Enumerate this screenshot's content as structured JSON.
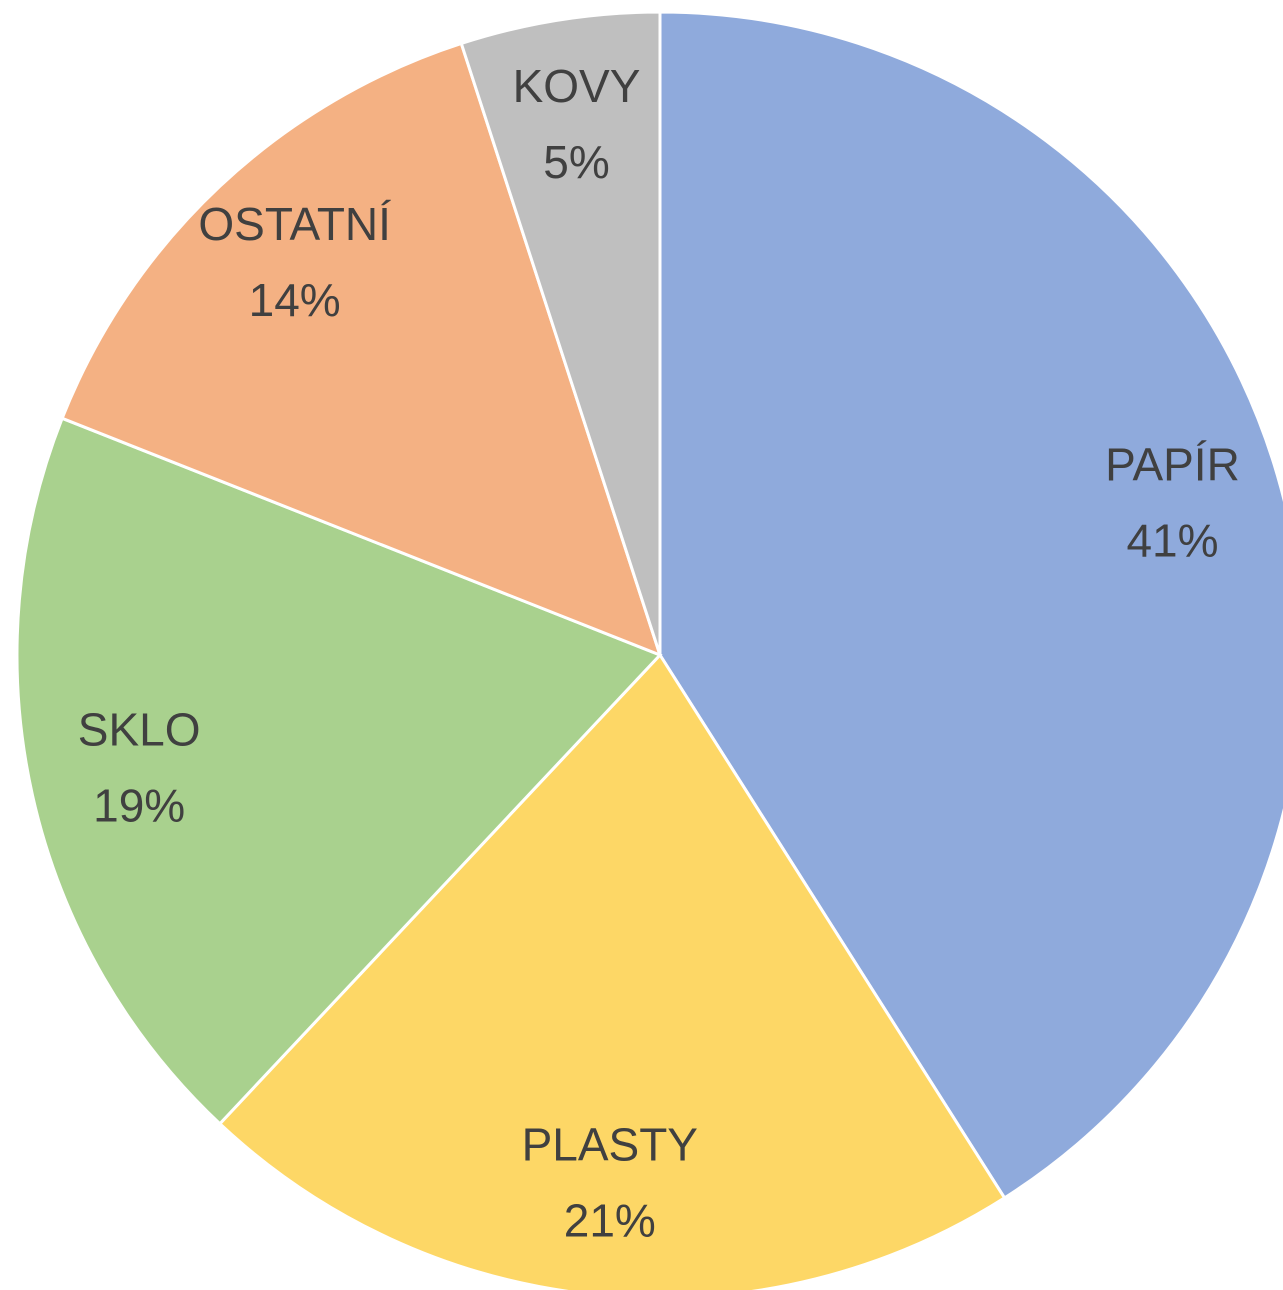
{
  "chart_data": {
    "type": "pie",
    "categories": [
      "PAPÍR",
      "PLASTY",
      "SKLO",
      "OSTATNÍ",
      "KOVY"
    ],
    "values": [
      41,
      21,
      19,
      14,
      5
    ],
    "value_labels": [
      "41%",
      "21%",
      "19%",
      "14%",
      "5%"
    ],
    "colors": [
      "#8faadc",
      "#fdd766",
      "#a9d18e",
      "#f4b183",
      "#bfbfbf"
    ]
  }
}
